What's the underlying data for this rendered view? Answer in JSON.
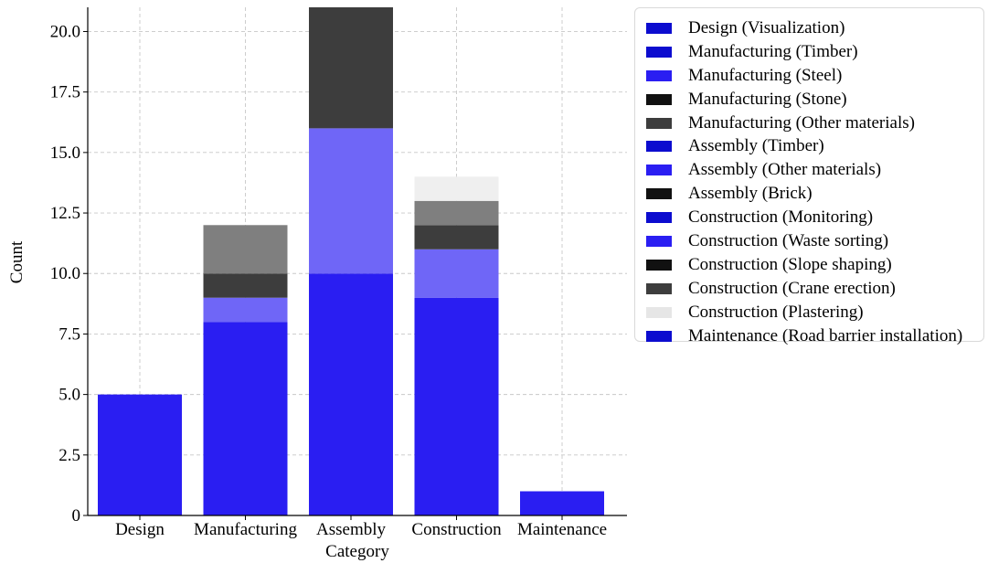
{
  "chart_data": {
    "type": "bar",
    "stacked": true,
    "xlabel": "Category",
    "ylabel": "Count",
    "ylim": [
      0,
      21
    ],
    "yticks": [
      0,
      2.5,
      5.0,
      7.5,
      10.0,
      12.5,
      15.0,
      17.5,
      20.0
    ],
    "ytick_labels": [
      "0",
      "2.5",
      "5.0",
      "7.5",
      "10.0",
      "12.5",
      "15.0",
      "17.5",
      "20.0"
    ],
    "grid": true,
    "legend_position": "outside-right",
    "categories": [
      "Design",
      "Manufacturing",
      "Assembly",
      "Construction",
      "Maintenance"
    ],
    "series": [
      {
        "name": "Design (Visualization)",
        "color": "#2a1ef2",
        "values": [
          5,
          0,
          0,
          0,
          0
        ]
      },
      {
        "name": "Manufacturing (Timber)",
        "color": "#2a1ef2",
        "values": [
          0,
          8,
          0,
          0,
          0
        ]
      },
      {
        "name": "Manufacturing (Steel)",
        "color": "#6f66f7",
        "values": [
          0,
          1,
          0,
          0,
          0
        ]
      },
      {
        "name": "Manufacturing (Stone)",
        "color": "#3d3d3d",
        "values": [
          0,
          1,
          0,
          0,
          0
        ]
      },
      {
        "name": "Manufacturing (Other materials)",
        "color": "#7f7f7f",
        "values": [
          0,
          2,
          0,
          0,
          0
        ]
      },
      {
        "name": "Assembly (Timber)",
        "color": "#2a1ef2",
        "values": [
          0,
          0,
          10,
          0,
          0
        ]
      },
      {
        "name": "Assembly (Other materials)",
        "color": "#6f66f7",
        "values": [
          0,
          0,
          6,
          0,
          0
        ]
      },
      {
        "name": "Assembly (Brick)",
        "color": "#3d3d3d",
        "values": [
          0,
          0,
          5,
          0,
          0
        ]
      },
      {
        "name": "Construction (Monitoring)",
        "color": "#2a1ef2",
        "values": [
          0,
          0,
          0,
          9,
          0
        ]
      },
      {
        "name": "Construction (Waste sorting)",
        "color": "#6f66f7",
        "values": [
          0,
          0,
          0,
          2,
          0
        ]
      },
      {
        "name": "Construction (Slope shaping)",
        "color": "#3d3d3d",
        "values": [
          0,
          0,
          0,
          1,
          0
        ]
      },
      {
        "name": "Construction (Crane erection)",
        "color": "#7f7f7f",
        "values": [
          0,
          0,
          0,
          1,
          0
        ]
      },
      {
        "name": "Construction (Plastering)",
        "color": "#efefef",
        "values": [
          0,
          0,
          0,
          1,
          0
        ]
      },
      {
        "name": "Maintenance (Road barrier installation)",
        "color": "#2a1ef2",
        "values": [
          0,
          0,
          0,
          0,
          1
        ]
      }
    ],
    "legend_swatch_colors": [
      "#0c0ccf",
      "#0c0ccf",
      "#2a1ef2",
      "#111111",
      "#3d3d3d",
      "#0c0ccf",
      "#2a1ef2",
      "#111111",
      "#0c0ccf",
      "#2a1ef2",
      "#111111",
      "#3d3d3d",
      "#e6e6e6",
      "#0c0ccf"
    ]
  }
}
